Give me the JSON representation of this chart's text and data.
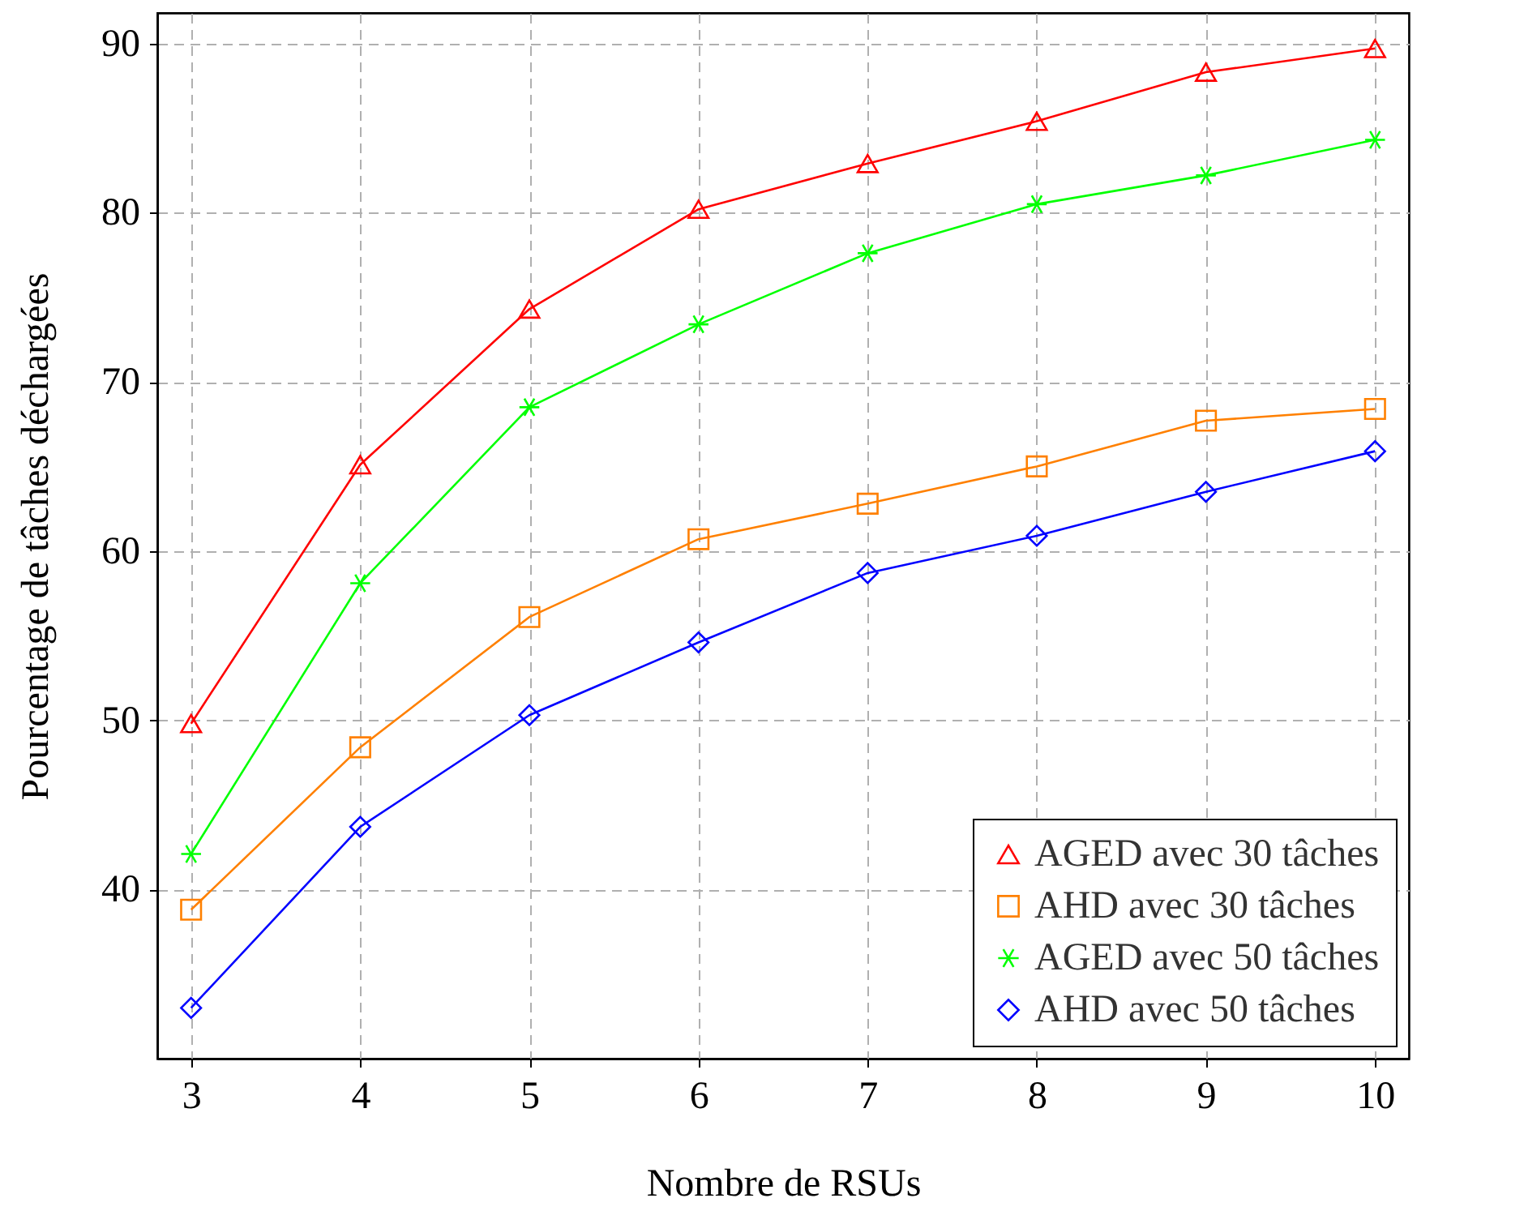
{
  "chart_data": {
    "type": "line",
    "xlabel": "Nombre de RSUs",
    "ylabel": "Pourcentage de tâches déchargées",
    "x": [
      3,
      4,
      5,
      6,
      7,
      8,
      9,
      10
    ],
    "series": [
      {
        "name": "AGED avec 30 tâches",
        "color": "#ff0000",
        "marker": "triangle",
        "values": [
          49.8,
          65.1,
          74.3,
          80.2,
          82.9,
          85.4,
          88.3,
          89.7
        ]
      },
      {
        "name": "AHD avec 30 tâches",
        "color": "#ff8000",
        "marker": "square",
        "values": [
          38.8,
          48.4,
          56.1,
          60.7,
          62.8,
          65.0,
          67.7,
          68.4
        ]
      },
      {
        "name": "AGED avec 50 tâches",
        "color": "#00ff00",
        "marker": "cross",
        "values": [
          42.1,
          58.1,
          68.5,
          73.4,
          77.6,
          80.5,
          82.2,
          84.3
        ]
      },
      {
        "name": "AHD avec 50 tâches",
        "color": "#0000ff",
        "marker": "diamond",
        "values": [
          33.0,
          43.7,
          50.3,
          54.6,
          58.7,
          60.9,
          63.5,
          65.9
        ]
      }
    ],
    "xlim": [
      2.8,
      10.2
    ],
    "xticks": [
      3,
      4,
      5,
      6,
      7,
      8,
      9,
      10
    ],
    "ylim": [
      30,
      91.8
    ],
    "yticks": [
      40,
      50,
      60,
      70,
      80,
      90
    ],
    "grid": true,
    "legend": "bottom right",
    "line_style": "solid"
  }
}
